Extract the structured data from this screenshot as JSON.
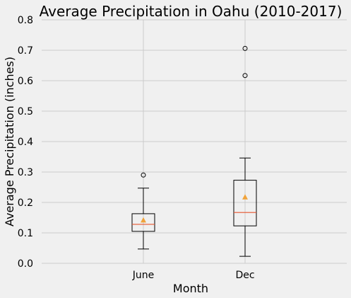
{
  "chart_data": {
    "type": "box",
    "title": "Average Precipitation in Oahu (2010-2017)",
    "xlabel": "Month",
    "ylabel": "Average Precipitation (inches)",
    "ylim": [
      0,
      0.8
    ],
    "yticks": [
      "0.0",
      "0.1",
      "0.2",
      "0.3",
      "0.4",
      "0.5",
      "0.6",
      "0.7",
      "0.8"
    ],
    "grid": true,
    "categories": [
      "June",
      "Dec"
    ],
    "boxes": [
      {
        "category": "June",
        "whisker_low": 0.047,
        "q1": 0.105,
        "median": 0.128,
        "q3": 0.163,
        "whisker_high": 0.247,
        "mean": 0.141,
        "outliers": [
          0.29
        ]
      },
      {
        "category": "Dec",
        "whisker_low": 0.023,
        "q1": 0.123,
        "median": 0.167,
        "q3": 0.273,
        "whisker_high": 0.346,
        "mean": 0.217,
        "outliers": [
          0.617,
          0.706
        ]
      }
    ],
    "colors": {
      "background": "#f0f0f0",
      "grid": "#cbcbcb",
      "box": "#000000",
      "median": "#e5562f",
      "mean_marker": "#f0a33b"
    }
  }
}
